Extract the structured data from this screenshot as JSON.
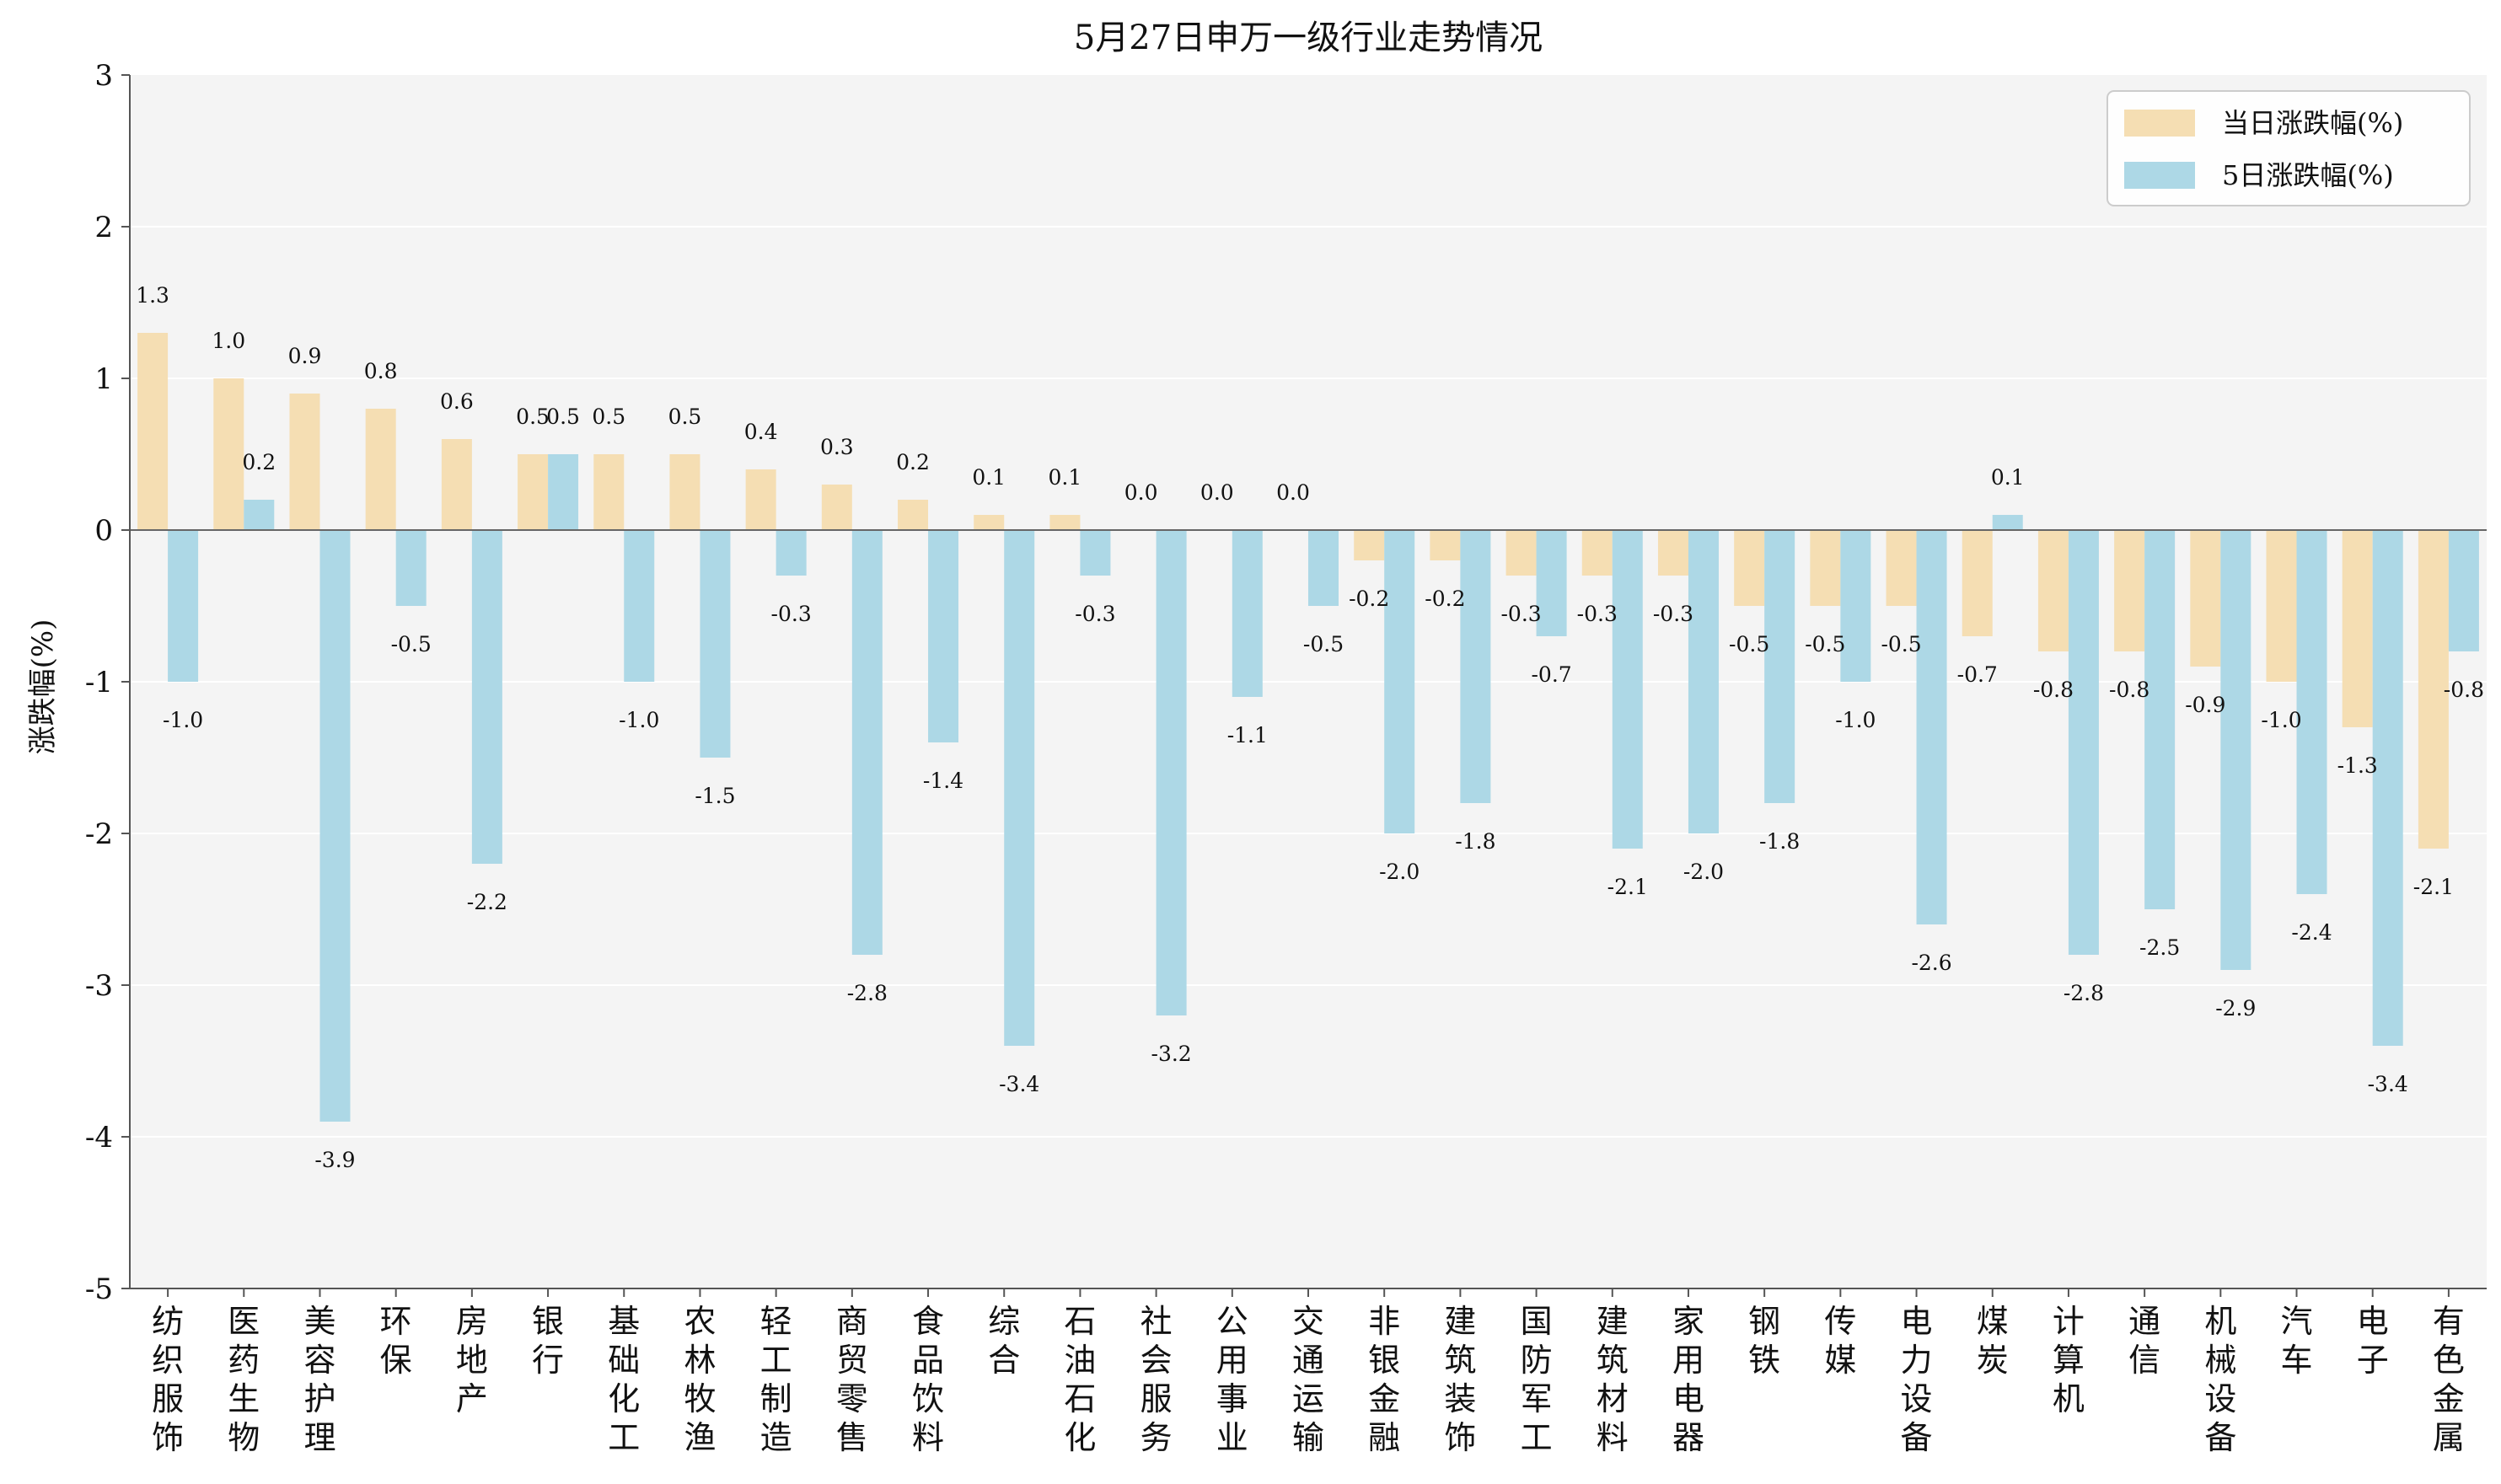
{
  "chart_data": {
    "type": "bar",
    "title": "5月27日申万一级行业走势情况",
    "xlabel": "",
    "ylabel": "涨跌幅(%)",
    "ylim": [
      -5,
      3
    ],
    "yticks": [
      3,
      2,
      1,
      0,
      -1,
      -2,
      -3,
      -4,
      -5
    ],
    "grid": "horizontal",
    "legend_position": "top-right",
    "categories": [
      "纺织服饰",
      "医药生物",
      "美容护理",
      "环保",
      "房地产",
      "银行",
      "基础化工",
      "农林牧渔",
      "轻工制造",
      "商贸零售",
      "食品饮料",
      "综合",
      "石油石化",
      "社会服务",
      "公用事业",
      "交通运输",
      "非银金融",
      "建筑装饰",
      "国防军工",
      "建筑材料",
      "家用电器",
      "钢铁",
      "传媒",
      "电力设备",
      "煤炭",
      "计算机",
      "通信",
      "机械设备",
      "汽车",
      "电子",
      "有色金属"
    ],
    "series": [
      {
        "name": "当日涨跌幅(%)",
        "color": "#f5deb3",
        "values": [
          1.3,
          1.0,
          0.9,
          0.8,
          0.6,
          0.5,
          0.5,
          0.5,
          0.4,
          0.3,
          0.2,
          0.1,
          0.1,
          0.0,
          0.0,
          0.0,
          -0.2,
          -0.2,
          -0.3,
          -0.3,
          -0.3,
          -0.5,
          -0.5,
          -0.5,
          -0.7,
          -0.8,
          -0.8,
          -0.9,
          -1.0,
          -1.3,
          -2.1
        ]
      },
      {
        "name": "5日涨跌幅(%)",
        "color": "#add8e6",
        "values": [
          -1.0,
          0.2,
          -3.9,
          -0.5,
          -2.2,
          0.5,
          -1.0,
          -1.5,
          -0.3,
          -2.8,
          -1.4,
          -3.4,
          -0.3,
          -3.2,
          -1.1,
          -0.5,
          -2.0,
          -1.8,
          -0.7,
          -2.1,
          -2.0,
          -1.8,
          -1.0,
          -2.6,
          0.1,
          -2.8,
          -2.5,
          -2.9,
          -2.4,
          -3.4,
          -0.8
        ]
      }
    ]
  }
}
